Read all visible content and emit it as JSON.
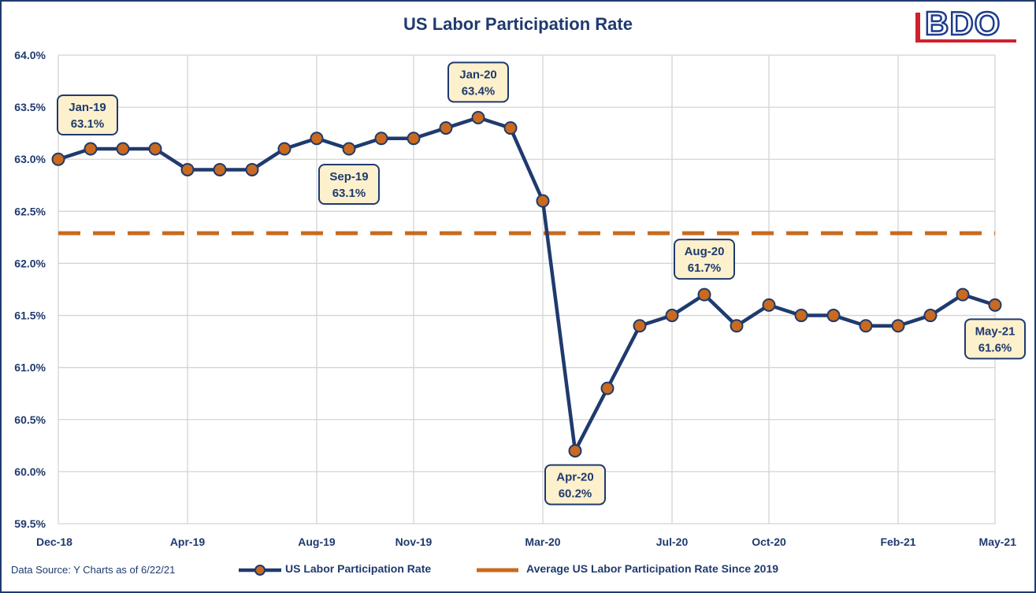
{
  "chart_data": {
    "type": "line",
    "title": "US Labor Participation Rate",
    "x": [
      "Dec-18",
      "Jan-19",
      "Feb-19",
      "Mar-19",
      "Apr-19",
      "May-19",
      "Jun-19",
      "Jul-19",
      "Aug-19",
      "Sep-19",
      "Oct-19",
      "Nov-19",
      "Dec-19",
      "Jan-20",
      "Feb-20",
      "Mar-20",
      "Apr-20",
      "May-20",
      "Jun-20",
      "Jul-20",
      "Aug-20",
      "Sep-20",
      "Oct-20",
      "Nov-20",
      "Dec-20",
      "Jan-21",
      "Feb-21",
      "Mar-21",
      "Apr-21",
      "May-21"
    ],
    "x_tick_labels": [
      "Dec-18",
      "Apr-19",
      "Aug-19",
      "Nov-19",
      "Mar-20",
      "Jul-20",
      "Oct-20",
      "Feb-21",
      "May-21"
    ],
    "y_tick_labels": [
      "59.5%",
      "60.0%",
      "60.5%",
      "61.0%",
      "61.5%",
      "62.0%",
      "62.5%",
      "63.0%",
      "63.5%",
      "64.0%"
    ],
    "ylim": [
      59.5,
      64.0
    ],
    "y_step": 0.5,
    "grid": true,
    "series": [
      {
        "name": "US Labor Participation Rate",
        "color": "#1f3a6e",
        "marker_color": "#c96a1e",
        "values": [
          63.0,
          63.1,
          63.1,
          63.1,
          62.9,
          62.9,
          62.9,
          63.1,
          63.2,
          63.1,
          63.2,
          63.2,
          63.3,
          63.4,
          63.3,
          62.6,
          60.2,
          60.8,
          61.4,
          61.5,
          61.7,
          61.4,
          61.6,
          61.5,
          61.5,
          61.4,
          61.4,
          61.5,
          61.7,
          61.6
        ]
      },
      {
        "name": "Average US Labor Participation Rate Since 2019",
        "color": "#c96a1e",
        "style": "dashed",
        "value": 62.29
      }
    ],
    "annotations": [
      {
        "index": 1,
        "line1": "Jan-19",
        "line2": "63.1%"
      },
      {
        "index": 9,
        "line1": "Sep-19",
        "line2": "63.1%"
      },
      {
        "index": 13,
        "line1": "Jan-20",
        "line2": "63.4%"
      },
      {
        "index": 16,
        "line1": "Apr-20",
        "line2": "60.2%"
      },
      {
        "index": 20,
        "line1": "Aug-20",
        "line2": "61.7%"
      },
      {
        "index": 29,
        "line1": "May-21",
        "line2": "61.6%"
      }
    ],
    "legend_position": "bottom"
  },
  "logo": {
    "text": "BDO"
  },
  "source": "Data Source: Y Charts as of 6/22/21",
  "colors": {
    "navy": "#1f3a6e",
    "orange": "#c96a1e",
    "label_fill": "#fdf0cc",
    "grid": "#d4d4d4"
  }
}
